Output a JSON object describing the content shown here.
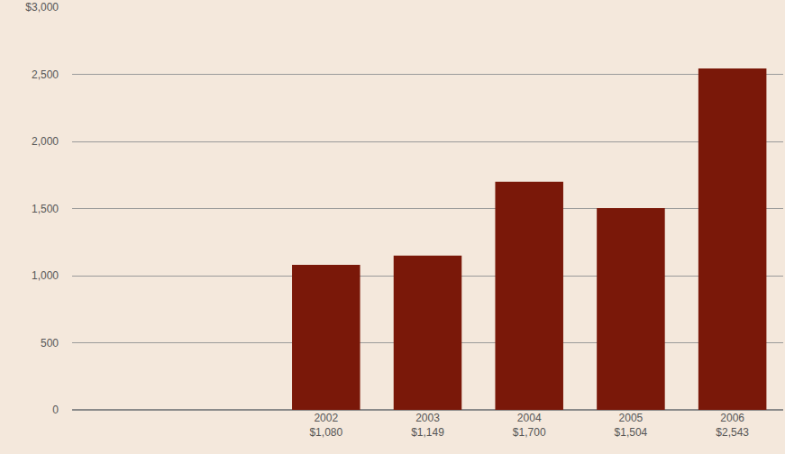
{
  "chart_data": {
    "type": "bar",
    "categories": [
      null,
      null,
      "2002",
      "2003",
      "2004",
      "2005",
      "2006"
    ],
    "values": [
      null,
      null,
      1080,
      1149,
      1700,
      1504,
      2543
    ],
    "value_labels": [
      null,
      null,
      "$1,080",
      "$1,149",
      "$1,700",
      "$1,504",
      "$2,543"
    ],
    "data_labels": true,
    "color": "#7a1809",
    "ylim": [
      0,
      3000
    ],
    "yticks": [
      0,
      500,
      {
        "value": 1000,
        "label": "1,000"
      },
      {
        "value": 1500,
        "label": "1,500"
      },
      {
        "value": 2000,
        "label": "2,000"
      },
      {
        "value": 2500,
        "label": "2,500"
      },
      {
        "value": 3000,
        "label": "$3,000"
      }
    ],
    "grid": true
  }
}
